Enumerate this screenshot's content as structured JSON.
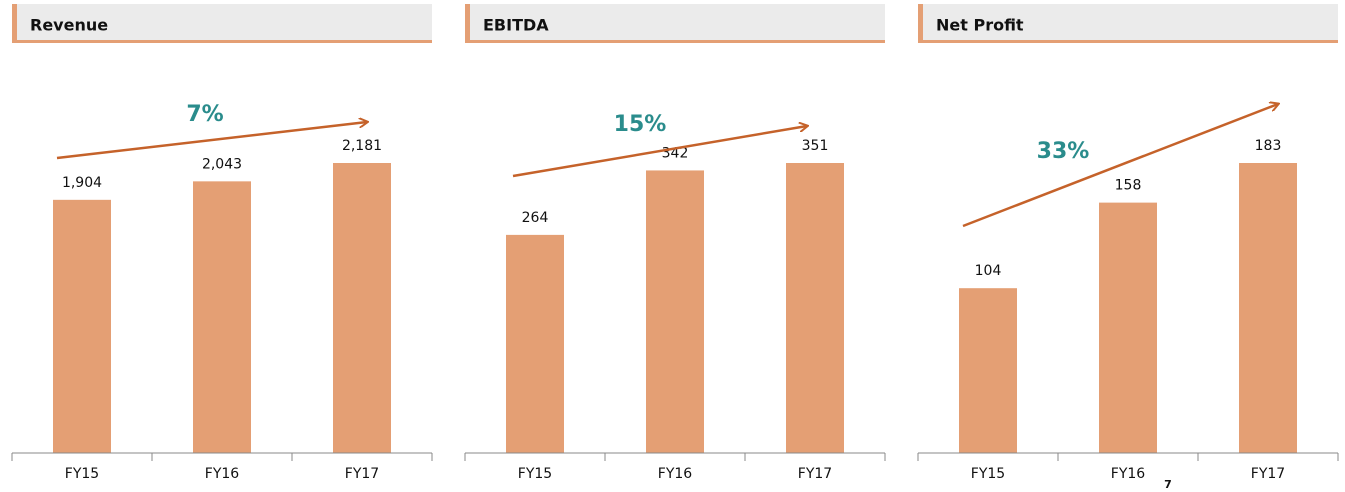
{
  "chart_data": [
    {
      "type": "bar",
      "title": "Revenue",
      "categories": [
        "FY15",
        "FY16",
        "FY17"
      ],
      "values": [
        1904,
        2043,
        2181
      ],
      "value_labels": [
        "1,904",
        "2,043",
        "2,181"
      ],
      "color": "#e49f74",
      "annotation": "7%"
    },
    {
      "type": "bar",
      "title": "EBITDA",
      "categories": [
        "FY15",
        "FY16",
        "FY17"
      ],
      "values": [
        264,
        342,
        351
      ],
      "color": "#e49f74",
      "annotation": "15%"
    },
    {
      "type": "bar",
      "title": "Net Profit",
      "categories": [
        "FY15",
        "FY16",
        "FY17"
      ],
      "values": [
        104,
        158,
        183
      ],
      "color": "#e49f74",
      "annotation": "33%"
    }
  ],
  "page_number": "7"
}
